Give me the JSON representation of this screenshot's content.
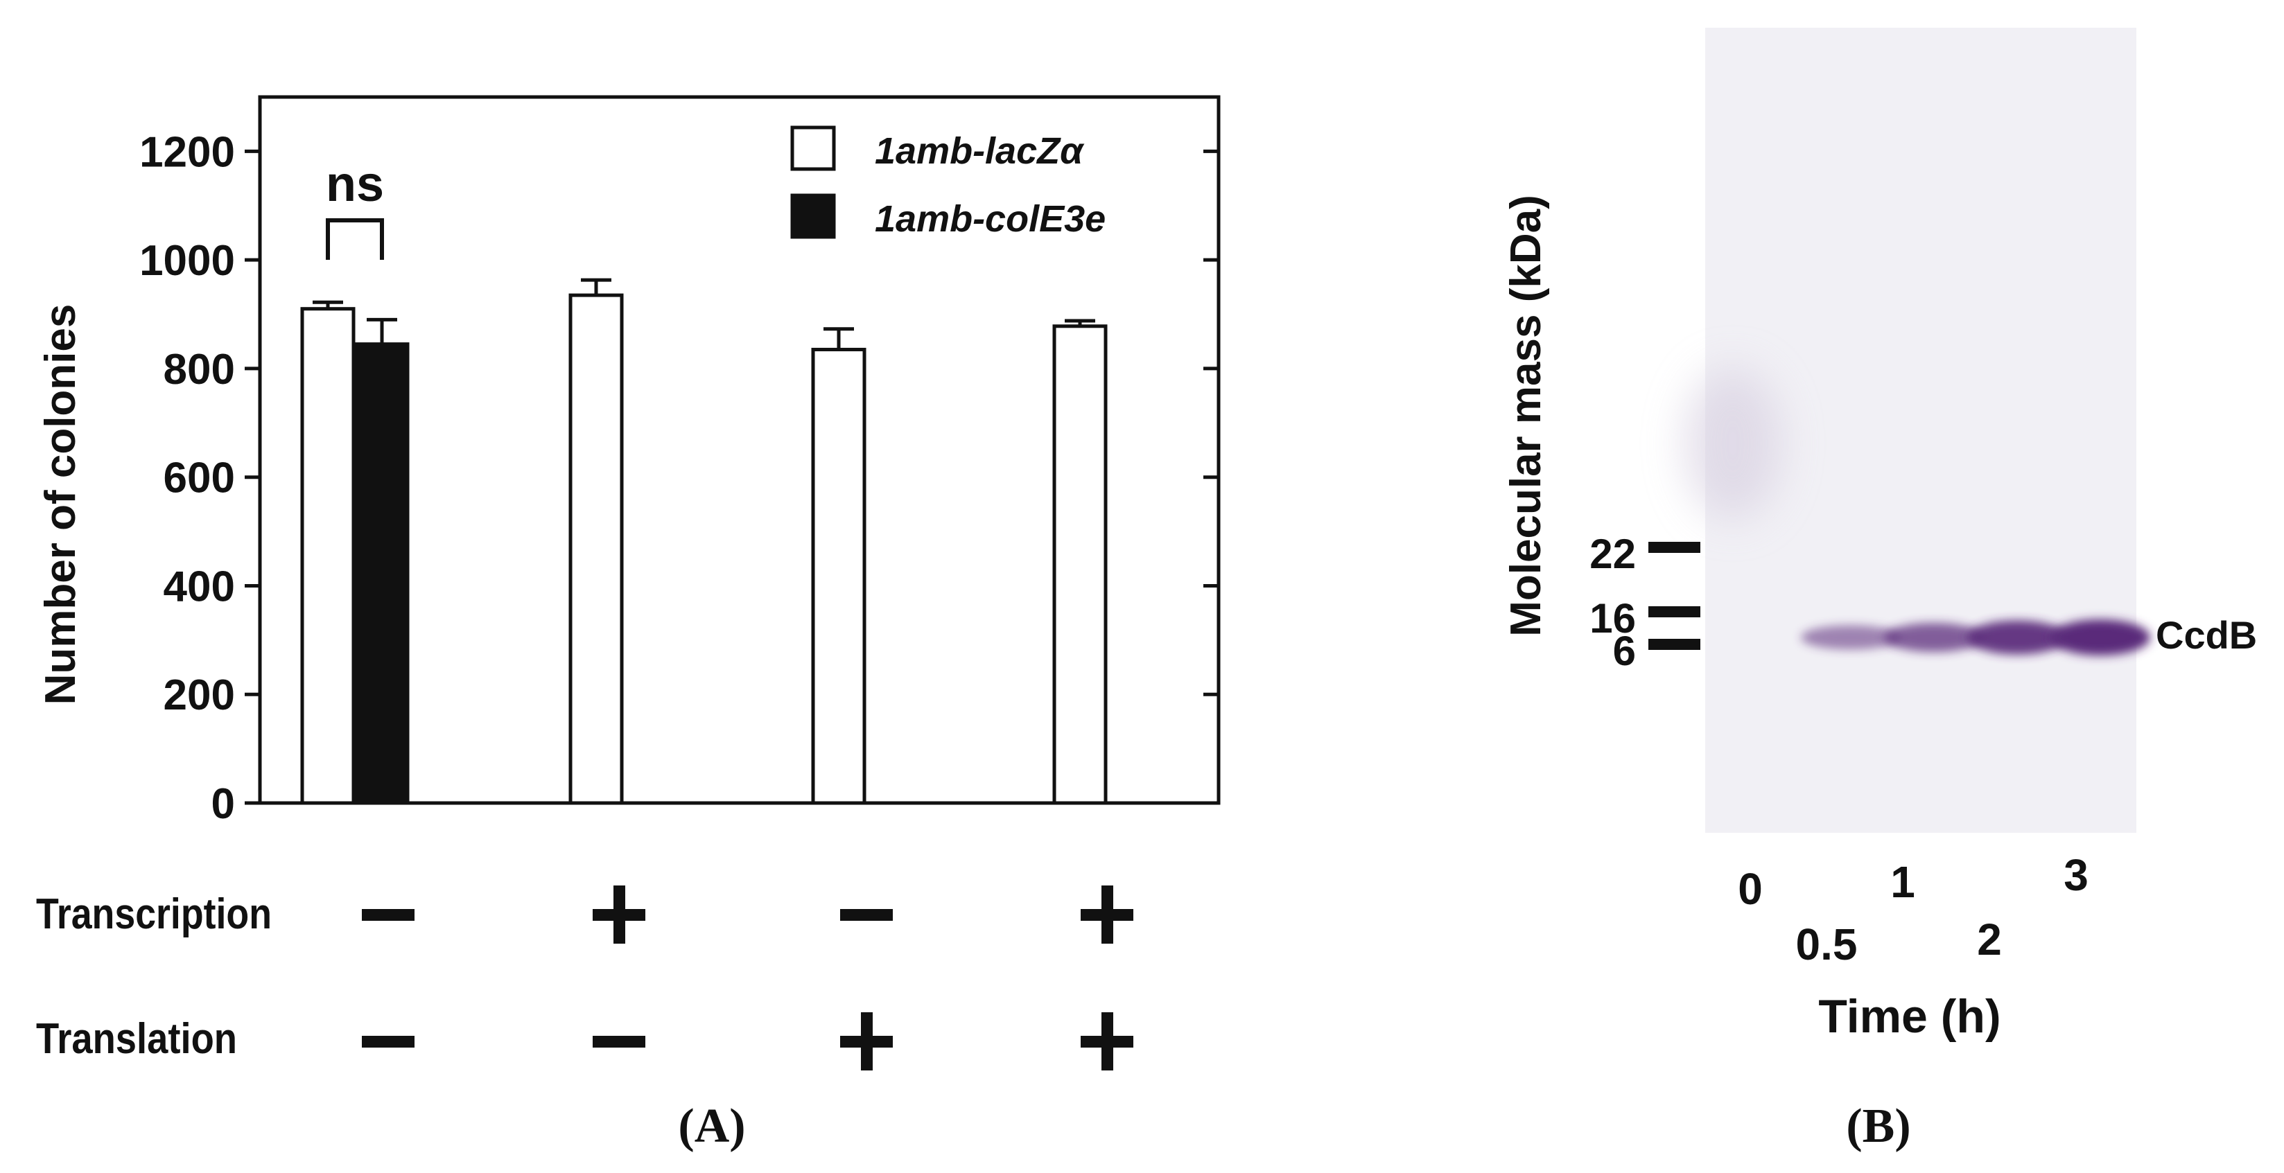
{
  "chart_data": [
    {
      "type": "bar",
      "panel": "(A)",
      "ylabel": "Number of colonies",
      "ylim": [
        0,
        1300
      ],
      "yticks": [
        0,
        200,
        400,
        600,
        800,
        1000,
        1200
      ],
      "legend": {
        "placement": "top-right",
        "entries": [
          {
            "label": "1amb-lacZα",
            "color": "#ffffff"
          },
          {
            "label": "1amb-colE3e",
            "color": "#111111"
          }
        ]
      },
      "groups": [
        {
          "transcription": "−",
          "translation": "−"
        },
        {
          "transcription": "+",
          "translation": "−"
        },
        {
          "transcription": "−",
          "translation": "+"
        },
        {
          "transcription": "+",
          "translation": "+"
        }
      ],
      "row_labels": {
        "transcription": "Transcription",
        "translation": "Translation"
      },
      "series": [
        {
          "name": "1amb-lacZα",
          "values": [
            910,
            935,
            835,
            878
          ],
          "errors": [
            12,
            28,
            38,
            10
          ]
        },
        {
          "name": "1amb-colE3e",
          "values": [
            845,
            null,
            null,
            null
          ],
          "errors": [
            45,
            null,
            null,
            null
          ]
        }
      ],
      "annotations": [
        {
          "text": "ns",
          "group": 0
        }
      ]
    },
    {
      "type": "gel",
      "panel": "(B)",
      "ylabel": "Molecular mass (kDa)",
      "xlabel": "Time (h)",
      "markers": [
        22,
        16,
        6
      ],
      "lanes": [
        "0",
        "0.5",
        "1",
        "2",
        "3"
      ],
      "band_label": "CcdB",
      "band_intensity": [
        0.0,
        0.4,
        0.65,
        0.9,
        1.0
      ],
      "band_color": "#5a2a7a"
    }
  ]
}
